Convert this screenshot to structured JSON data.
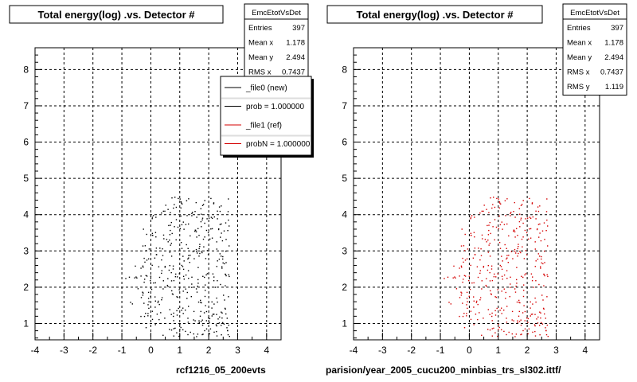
{
  "theme": {
    "left_color": "#000000",
    "right_color": "#d40000",
    "grid_color": "#000000"
  },
  "chart_data": [
    {
      "type": "scatter",
      "title": "Total energy(log) .vs. Detector #",
      "xlabel": "",
      "ylabel": "",
      "xlim": [
        -4,
        4.5
      ],
      "ylim": [
        0.55,
        8.6
      ],
      "xticks": [
        -4,
        -3,
        -2,
        -1,
        0,
        1,
        2,
        3,
        4
      ],
      "yticks": [
        1,
        2,
        3,
        4,
        5,
        6,
        7,
        8
      ],
      "grid": true,
      "point_color": "#000000",
      "stats": {
        "name": "EmcEtotVsDet",
        "rows": [
          {
            "label": "Entries",
            "value": "397"
          },
          {
            "label": "Mean x",
            "value": "1.178"
          },
          {
            "label": "Mean y",
            "value": "2.494"
          },
          {
            "label": "RMS x",
            "value": "0.7437"
          }
        ]
      },
      "legend": {
        "placement": "top-right",
        "entries": [
          {
            "label": "_file0 (new)",
            "color": "#000000"
          },
          {
            "label": "prob = 1.000000",
            "color": "#000000"
          },
          {
            "label": "_file1 (ref)",
            "color": "#d40000"
          },
          {
            "label": "probN = 1.000000",
            "color": "#d40000"
          }
        ]
      },
      "footer": "rcf1216_05_200evts",
      "points": {
        "count": 397,
        "x_range": [
          -0.9,
          2.7
        ],
        "y_range": [
          0.65,
          4.5
        ]
      }
    },
    {
      "type": "scatter",
      "title": "Total energy(log) .vs. Detector #",
      "xlabel": "",
      "ylabel": "",
      "xlim": [
        -4,
        4.5
      ],
      "ylim": [
        0.55,
        8.6
      ],
      "xticks": [
        -4,
        -3,
        -2,
        -1,
        0,
        1,
        2,
        3,
        4
      ],
      "yticks": [
        1,
        2,
        3,
        4,
        5,
        6,
        7,
        8
      ],
      "grid": true,
      "point_color": "#d40000",
      "stats": {
        "name": "EmcEtotVsDet",
        "rows": [
          {
            "label": "Entries",
            "value": "397"
          },
          {
            "label": "Mean x",
            "value": "1.178"
          },
          {
            "label": "Mean y",
            "value": "2.494"
          },
          {
            "label": "RMS x",
            "value": "0.7437"
          },
          {
            "label": "RMS y",
            "value": "1.119"
          }
        ]
      },
      "footer": "parision/year_2005_cucu200_minbias_trs_sl302.ittf/",
      "points": {
        "count": 397,
        "x_range": [
          -0.9,
          2.7
        ],
        "y_range": [
          0.65,
          4.5
        ]
      }
    }
  ]
}
